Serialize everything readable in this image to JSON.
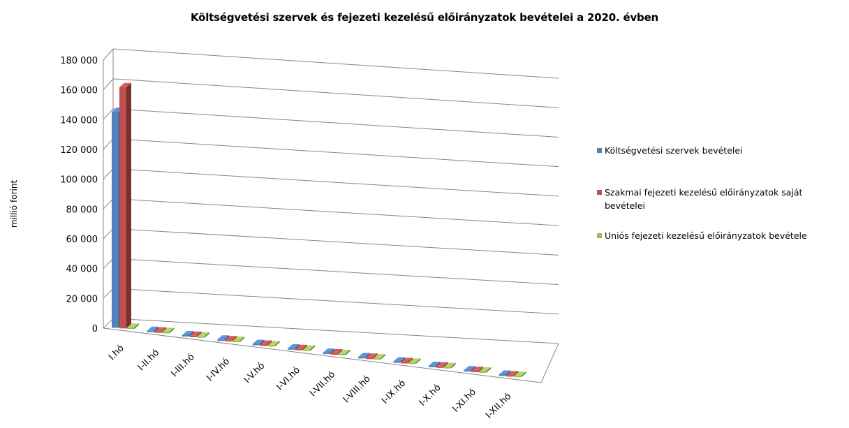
{
  "chart_data": {
    "type": "bar",
    "title": "Költségvetési szervek és fejezeti kezelésű előirányzatok bevételei a 2020. évben",
    "ylabel": "millió forint",
    "xlabel": "",
    "ylim": [
      0,
      180000
    ],
    "y_ticks": [
      "0",
      "20 000",
      "40 000",
      "60 000",
      "80 000",
      "100 000",
      "120 000",
      "140 000",
      "160 000",
      "180 000"
    ],
    "categories": [
      "I.hó",
      "I-II.hó",
      "I-III.hó",
      "I-IV.hó",
      "I-V.hó",
      "I-VI.hó",
      "I-VII.hó",
      "I-VIII.hó",
      "I-IX.hó",
      "I-X.hó",
      "I-XI.hó",
      "I-XII.hó"
    ],
    "series": [
      {
        "name": "Költségvetési szervek bevételei",
        "color": "#4f81bd",
        "values": [
          145000,
          0,
          0,
          0,
          0,
          0,
          0,
          0,
          0,
          0,
          0,
          0
        ]
      },
      {
        "name": "Szakmai fejezeti kezelésű előirányzatok saját bevételei",
        "color": "#c0504d",
        "values": [
          162000,
          0,
          0,
          0,
          0,
          0,
          0,
          0,
          0,
          0,
          0,
          0
        ]
      },
      {
        "name": "Uniós fejezeti kezelésű előirányzatok bevétele",
        "color": "#9bbb59",
        "values": [
          0,
          0,
          0,
          0,
          0,
          0,
          0,
          0,
          0,
          0,
          0,
          0
        ]
      }
    ],
    "grid": true,
    "legend_position": "right",
    "style": "3d-clustered-column"
  }
}
